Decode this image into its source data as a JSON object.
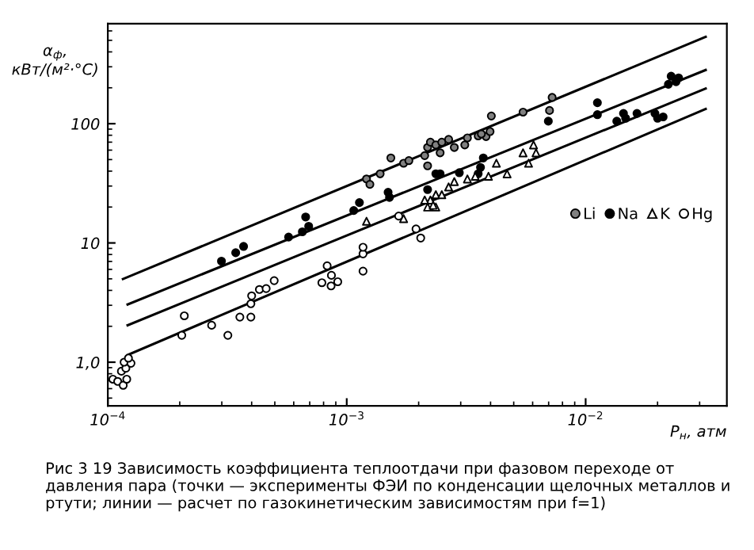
{
  "chart_data": {
    "type": "scatter",
    "xlabel": "P$_{н}$, атм",
    "ylabel": "α$_{ф}$,\nкВт/(м²·°С)",
    "log": "xy",
    "xlim": [
      0.0001,
      0.039
    ],
    "ylim": [
      0.43,
      690
    ],
    "xticks": [
      {
        "value": 0.0001,
        "label": "10$^{−4}$"
      },
      {
        "value": 0.001,
        "label": "10$^{−3}$"
      },
      {
        "value": 0.01,
        "label": "10$^{−2}$"
      }
    ],
    "yticks": [
      {
        "value": 1,
        "label": "1,0"
      },
      10,
      100
    ],
    "grid": false,
    "legend": "right",
    "series": [
      {
        "name": "Li",
        "marker": "circle",
        "color": "#808080",
        "x": [
          0.00121,
          0.00125,
          0.00138,
          0.00153,
          0.00173,
          0.00182,
          0.00218,
          0.00224,
          0.00236,
          0.0025,
          0.00246,
          0.00267,
          0.00218,
          0.00282,
          0.00312,
          0.0032,
          0.00355,
          0.00383,
          0.00398,
          0.00366,
          0.00403,
          0.00547,
          0.00706,
          0.00724,
          0.00212
        ],
        "values": [
          34.4,
          31,
          38,
          51.6,
          46.6,
          49,
          63.2,
          70,
          66.4,
          70,
          57,
          73.8,
          44.3,
          63.2,
          66.4,
          76,
          79,
          78,
          85.9,
          82,
          116,
          125,
          129,
          166,
          54
        ]
      },
      {
        "name": "Na",
        "marker": "circle",
        "color": "#000000",
        "x": [
          0.000299,
          0.000343,
          0.00037,
          0.000571,
          0.000652,
          0.000693,
          0.000673,
          0.00107,
          0.00113,
          0.00151,
          0.00149,
          0.00218,
          0.00236,
          0.00246,
          0.00296,
          0.00355,
          0.00363,
          0.00373,
          0.00698,
          0.0112,
          0.0112,
          0.0135,
          0.0144,
          0.0164,
          0.0147,
          0.0195,
          0.02,
          0.0211,
          0.0222,
          0.0228,
          0.0239,
          0.0245
        ],
        "values": [
          7.04,
          8.28,
          9.35,
          11.2,
          12.4,
          13.8,
          16.5,
          18.7,
          21.8,
          24.1,
          26.6,
          28,
          38,
          38,
          38.8,
          38,
          43,
          51.6,
          105,
          150,
          119,
          105,
          122,
          122,
          111,
          122,
          111,
          114,
          214,
          250,
          225,
          242
        ]
      },
      {
        "name": "K",
        "marker": "triangle",
        "color": "#ffffff",
        "x": [
          0.00121,
          0.00173,
          0.00218,
          0.00236,
          0.00224,
          0.00236,
          0.00212,
          0.0023,
          0.00267,
          0.0025,
          0.00282,
          0.0032,
          0.00345,
          0.00392,
          0.00423,
          0.00469,
          0.00547,
          0.00577,
          0.00605,
          0.0062
        ],
        "values": [
          15.2,
          16,
          20,
          20,
          22.9,
          25.4,
          22.9,
          20.7,
          29.5,
          25.4,
          32.7,
          34.4,
          36.2,
          36.2,
          46.6,
          38,
          57,
          46.6,
          66.4,
          57
        ]
      },
      {
        "name": "Hg",
        "marker": "circle",
        "color": "#ffffff",
        "x": [
          0.000105,
          0.00011,
          0.000116,
          0.00012,
          0.000114,
          0.000119,
          0.000117,
          0.000125,
          0.000122,
          0.000204,
          0.000209,
          0.000272,
          0.000318,
          0.000357,
          0.000397,
          0.000397,
          0.0004,
          0.000431,
          0.00046,
          0.000497,
          0.000787,
          0.000828,
          0.000863,
          0.00086,
          0.000917,
          0.00117,
          0.00117,
          0.00117,
          0.00165,
          0.00195,
          0.00204
        ],
        "values": [
          0.72,
          0.69,
          0.64,
          0.72,
          0.84,
          0.89,
          1.0,
          0.98,
          1.08,
          1.68,
          2.45,
          2.04,
          1.68,
          2.39,
          2.39,
          3.09,
          3.6,
          4.07,
          4.14,
          4.83,
          4.64,
          6.43,
          5.35,
          4.36,
          4.73,
          5.8,
          8.1,
          9.2,
          16.8,
          13.1,
          11.0
        ]
      },
      {
        "type": "line",
        "color": "#000000",
        "x": [
          0.0001157,
          0.0318
        ],
        "values": [
          4.98,
          535
        ]
      },
      {
        "type": "line",
        "color": "#000000",
        "x": [
          0.000121,
          0.0318
        ],
        "values": [
          3.05,
          282
        ]
      },
      {
        "type": "line",
        "color": "#000000",
        "x": [
          0.000121,
          0.0318
        ],
        "values": [
          2.04,
          197
        ]
      },
      {
        "type": "line",
        "color": "#000000",
        "x": [
          0.000121,
          0.0318
        ],
        "values": [
          1.15,
          133
        ]
      }
    ],
    "annotations": [
      "Рис 3 19 Зависимость коэффициента теплоотдачи при фазовом переходе от давления пара (точки — эксперименты ФЭИ по конденсации щелочных металлов и ртути; линии — расчет по газокинетическим зависимостям при f=1)"
    ]
  }
}
